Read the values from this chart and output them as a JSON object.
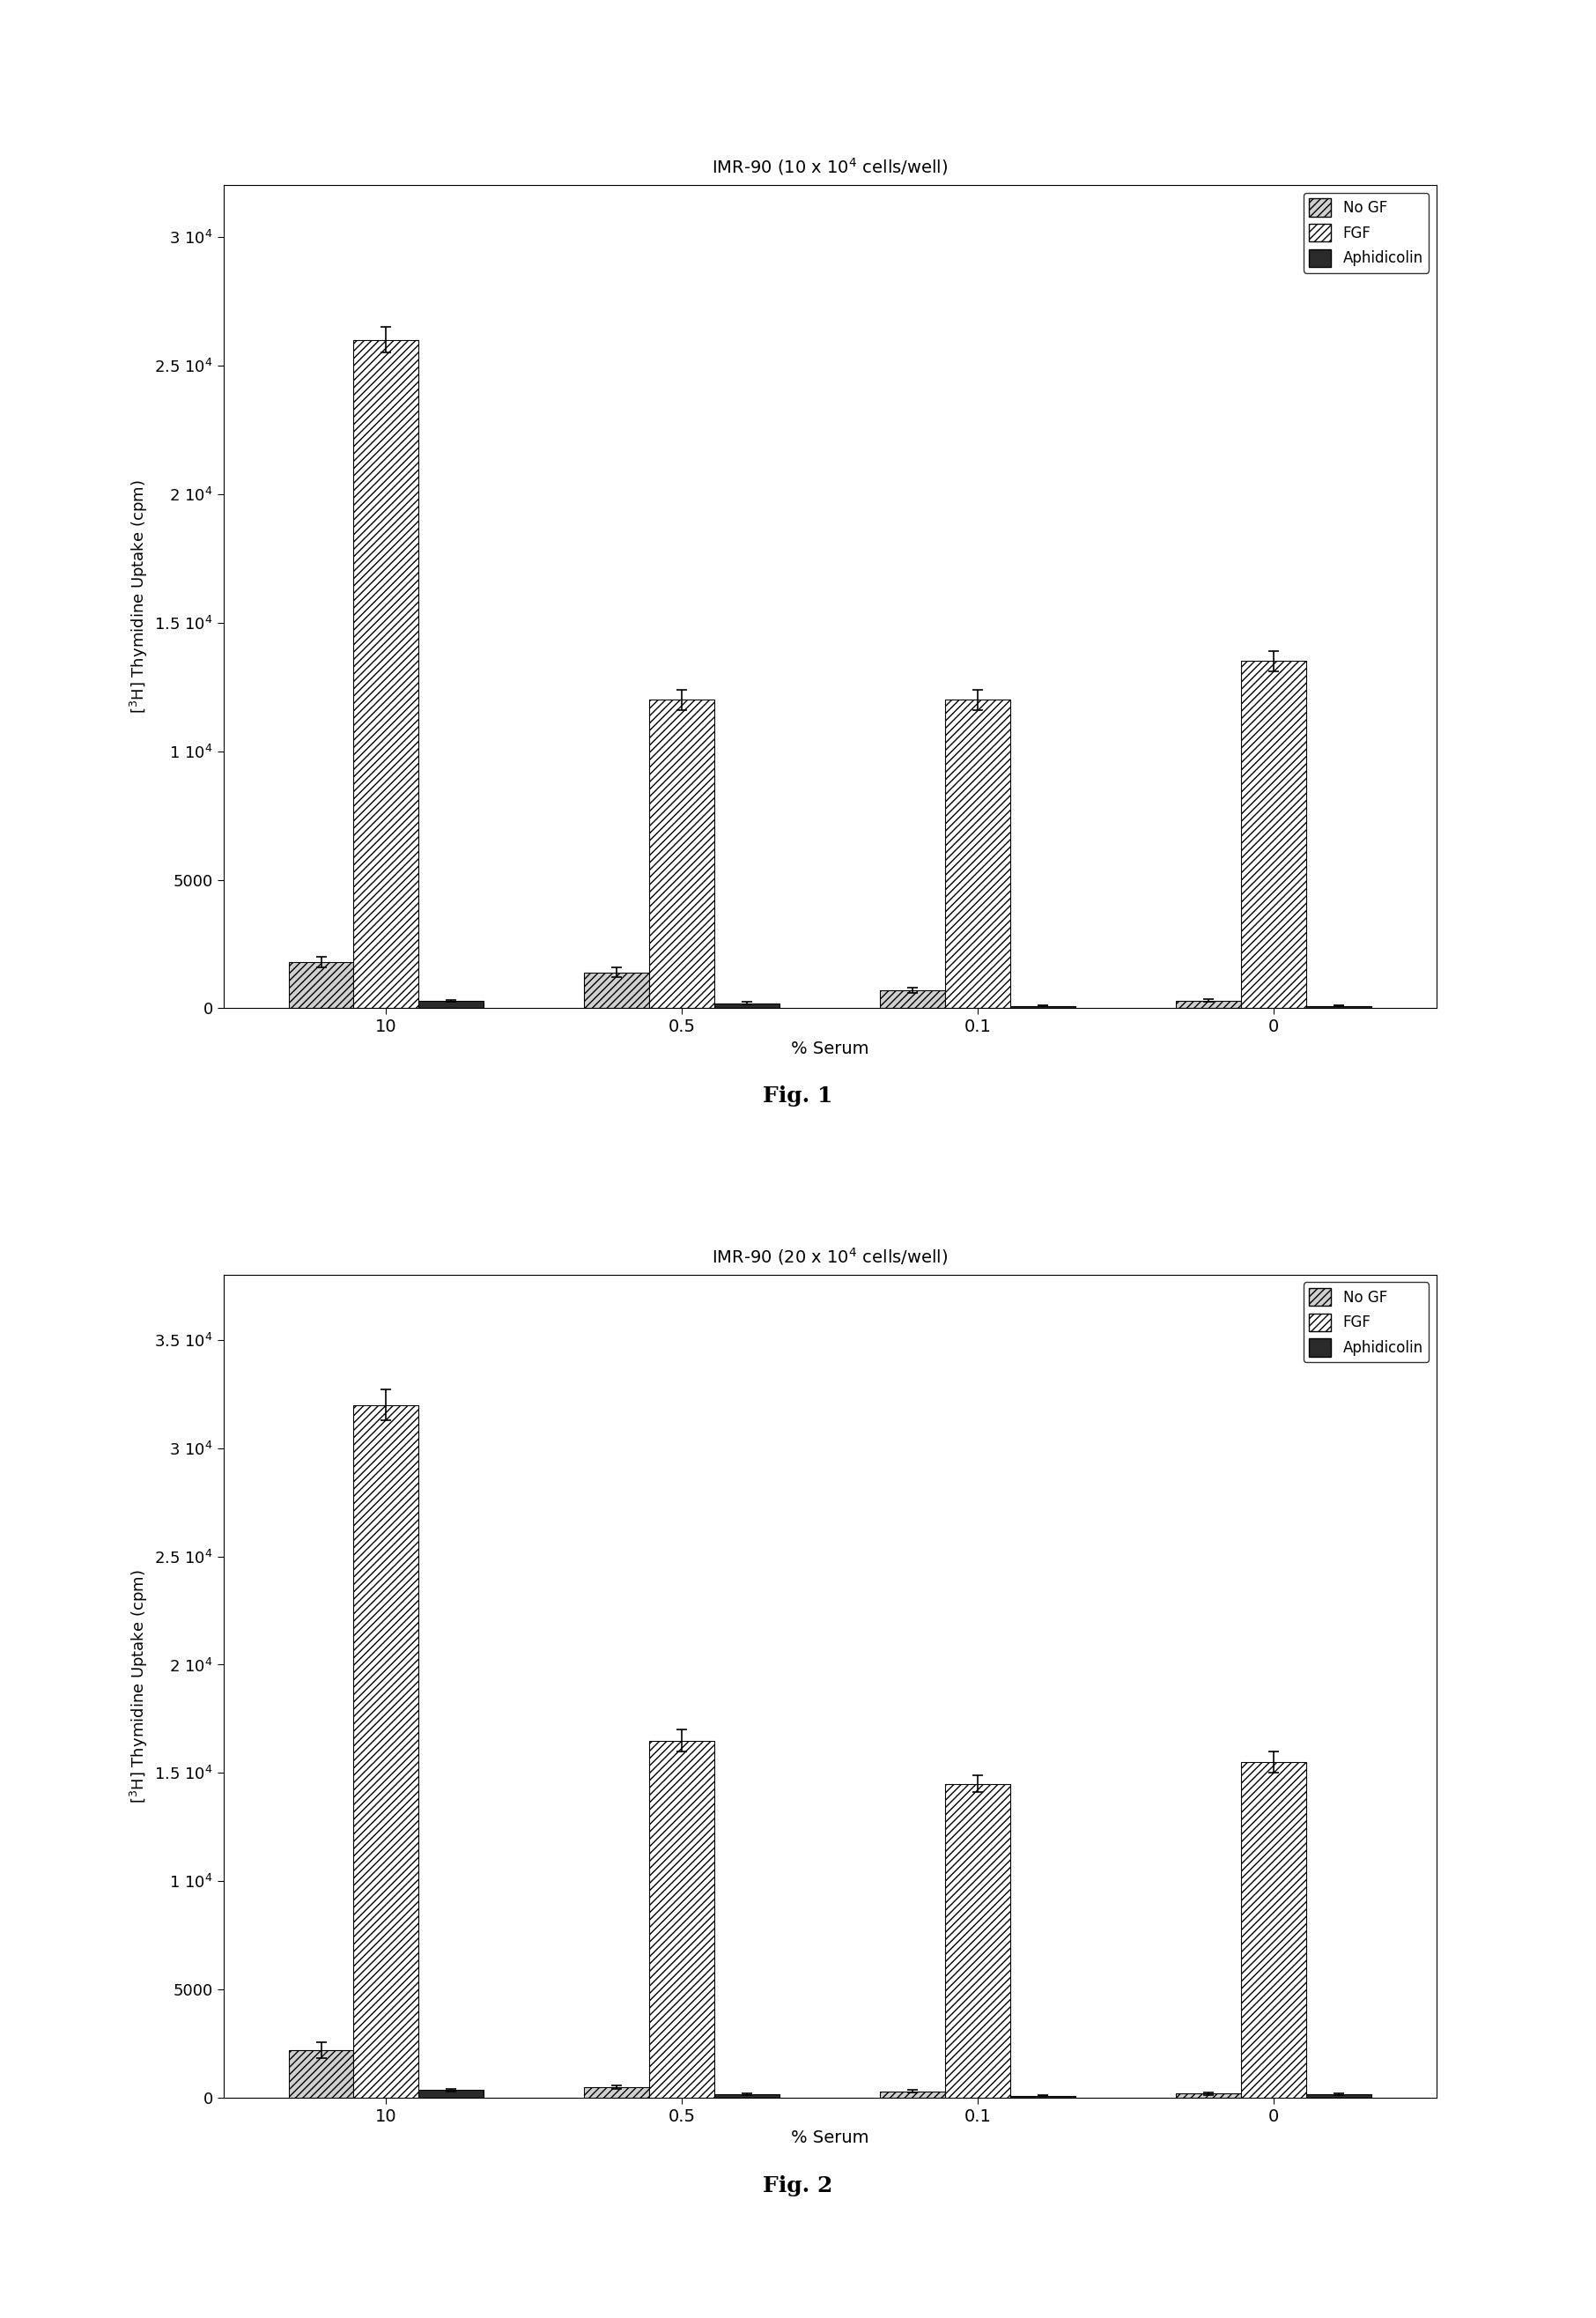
{
  "fig1": {
    "title": "IMR-90 (10 x 10$^4$ cells/well)",
    "categories": [
      "10",
      "0.5",
      "0.1",
      "0"
    ],
    "no_gf": [
      1800,
      1400,
      700,
      300
    ],
    "fgf": [
      26000,
      12000,
      12000,
      13500
    ],
    "aphidicolin": [
      300,
      200,
      100,
      100
    ],
    "no_gf_err": [
      200,
      200,
      100,
      50
    ],
    "fgf_err": [
      500,
      400,
      400,
      400
    ],
    "aphidicolin_err": [
      40,
      40,
      30,
      30
    ],
    "ylim": [
      0,
      32000
    ],
    "yticks": [
      0,
      5000,
      10000,
      15000,
      20000,
      25000,
      30000
    ],
    "ytick_labels": [
      "0",
      "5000",
      "1 10$^4$",
      "1.5 10$^4$",
      "2 10$^4$",
      "2.5 10$^4$",
      "3 10$^4$"
    ],
    "ylabel": "[$^3$H] Thymidine Uptake (cpm)",
    "xlabel": "% Serum",
    "fig_label": "Fig. 1"
  },
  "fig2": {
    "title": "IMR-90 (20 x 10$^4$ cells/well)",
    "categories": [
      "10",
      "0.5",
      "0.1",
      "0"
    ],
    "no_gf": [
      2200,
      500,
      300,
      200
    ],
    "fgf": [
      32000,
      16500,
      14500,
      15500
    ],
    "aphidicolin": [
      350,
      150,
      100,
      150
    ],
    "no_gf_err": [
      350,
      80,
      60,
      60
    ],
    "fgf_err": [
      700,
      500,
      400,
      500
    ],
    "aphidicolin_err": [
      50,
      40,
      30,
      40
    ],
    "ylim": [
      0,
      38000
    ],
    "yticks": [
      0,
      5000,
      10000,
      15000,
      20000,
      25000,
      30000,
      35000
    ],
    "ytick_labels": [
      "0",
      "5000",
      "1 10$^4$",
      "1.5 10$^4$",
      "2 10$^4$",
      "2.5 10$^4$",
      "3 10$^4$",
      "3.5 10$^4$"
    ],
    "ylabel": "[$^3$H] Thymidine Uptake (cpm)",
    "xlabel": "% Serum",
    "fig_label": "Fig. 2"
  },
  "bar_width": 0.22,
  "background_color": "#ffffff"
}
